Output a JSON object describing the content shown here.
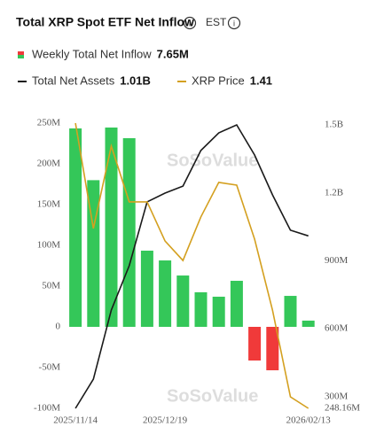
{
  "chart_data": {
    "type": "bar",
    "title": "Total XRP Spot ETF Net Inflow",
    "timezone": "EST",
    "watermark": "SoSoValue",
    "categories": [
      "2025/11/14",
      null,
      null,
      null,
      null,
      "2025/12/19",
      null,
      null,
      null,
      null,
      null,
      null,
      null,
      "2026/02/13"
    ],
    "series": [
      {
        "name": "Weekly Total Net Inflow",
        "type": "bar",
        "color": "#34c759",
        "negative_color": "#f03a3a",
        "summary": "7.65M",
        "axis": "y",
        "values": [
          243500000,
          180000000,
          244600000,
          231500000,
          93500000,
          81500000,
          63000000,
          42400000,
          37000000,
          56500000,
          -41300000,
          -53300000,
          38000000,
          7650000
        ]
      },
      {
        "name": "Total Net Assets",
        "type": "line",
        "color": "#1a1a1a",
        "summary": "1.01B",
        "axis": "y2",
        "values": [
          248160000,
          377000000,
          682000000,
          878000000,
          1160000000,
          1199000000,
          1230000000,
          1387000000,
          1465000000,
          1500000000,
          1367000000,
          1191000000,
          1035000000,
          1010000000
        ]
      },
      {
        "name": "XRP Price",
        "type": "line",
        "color": "#d4a020",
        "summary": "1.41",
        "axis": "y3",
        "values": [
          2.45,
          2.066,
          2.366,
          2.163,
          2.163,
          2.02,
          1.949,
          2.108,
          2.234,
          2.224,
          2.027,
          1.768,
          1.452,
          1.41
        ]
      }
    ],
    "ylim": [
      -100000000,
      250000000
    ],
    "yticks": [
      {
        "value": -100000000,
        "label": "-100M"
      },
      {
        "value": -50000000,
        "label": "-50M"
      },
      0,
      {
        "value": 50000000,
        "label": "50M"
      },
      {
        "value": 100000000,
        "label": "100M"
      },
      {
        "value": 150000000,
        "label": "150M"
      },
      {
        "value": 200000000,
        "label": "200M"
      },
      {
        "value": 250000000,
        "label": "250M"
      }
    ],
    "y2lim": [
      248160000,
      1508000000
    ],
    "y2ticks": [
      {
        "value": 248160000,
        "label": "248.16M"
      },
      {
        "value": 300000000,
        "label": "300M"
      },
      {
        "value": 600000000,
        "label": "600M"
      },
      {
        "value": 900000000,
        "label": "900M"
      },
      {
        "value": 1200000000,
        "label": "1.2B"
      },
      {
        "value": 1500000000,
        "label": "1.5B"
      }
    ],
    "y3lim": [
      1.41,
      2.45
    ],
    "grid": false
  }
}
